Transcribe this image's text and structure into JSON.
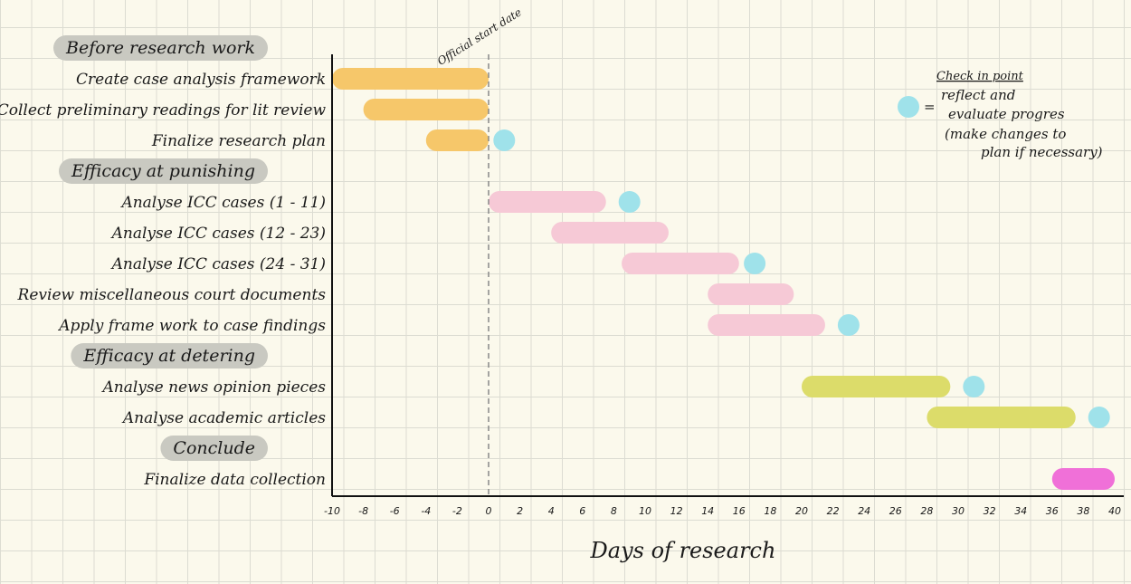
{
  "chart_data": {
    "type": "gantt",
    "title": "",
    "xlabel": "Days of research",
    "ylabel": "",
    "xlim": [
      -10,
      40
    ],
    "x_ticks": [
      -10,
      -8,
      -6,
      -4,
      -2,
      0,
      2,
      4,
      6,
      8,
      10,
      12,
      14,
      16,
      18,
      20,
      22,
      24,
      26,
      28,
      30,
      32,
      34,
      36,
      38,
      40
    ],
    "grid": true,
    "reference_line": {
      "x": 0,
      "label": "Official start date"
    },
    "colors": {
      "before_research": "#f6c76a",
      "efficacy_punishing": "#f6c9d6",
      "efficacy_deterring": "#dcdc6a",
      "conclude": "#f070d8",
      "check_in": "#9fe2ea"
    },
    "sections": [
      {
        "name": "Before research work",
        "color_key": "before_research",
        "tasks": [
          {
            "label": "Create case analysis framework",
            "start": -10,
            "end": 0,
            "checkin": null
          },
          {
            "label": "Collect preliminary readings for lit review",
            "start": -8,
            "end": 0,
            "checkin": null
          },
          {
            "label": "Finalize research plan",
            "start": -4,
            "end": 0,
            "checkin": 1
          }
        ]
      },
      {
        "name": "Efficacy at punishing",
        "color_key": "efficacy_punishing",
        "tasks": [
          {
            "label": "Analyse ICC cases (1 - 11)",
            "start": 0,
            "end": 7.5,
            "checkin": 9
          },
          {
            "label": "Analyse ICC cases (12 - 23)",
            "start": 4,
            "end": 11.5,
            "checkin": null
          },
          {
            "label": "Analyse ICC cases (24 - 31)",
            "start": 8.5,
            "end": 16,
            "checkin": 17
          },
          {
            "label": "Review miscellaneous court documents",
            "start": 14,
            "end": 19.5,
            "checkin": null
          },
          {
            "label": "Apply frame work to case findings",
            "start": 14,
            "end": 21.5,
            "checkin": 23
          }
        ]
      },
      {
        "name": "Efficacy at detering",
        "color_key": "efficacy_deterring",
        "tasks": [
          {
            "label": "Analyse news opinion pieces",
            "start": 20,
            "end": 29.5,
            "checkin": 31
          },
          {
            "label": "Analyse academic articles",
            "start": 28,
            "end": 37.5,
            "checkin": 39
          }
        ]
      },
      {
        "name": "Conclude",
        "color_key": "conclude",
        "tasks": [
          {
            "label": "Finalize data collection",
            "start": 36,
            "end": 40,
            "checkin": null
          }
        ]
      }
    ],
    "annotation": {
      "title": "Check in point",
      "lines": [
        "reflect and",
        "evaluate progres",
        "(make changes to",
        "plan if necessary)"
      ]
    }
  }
}
